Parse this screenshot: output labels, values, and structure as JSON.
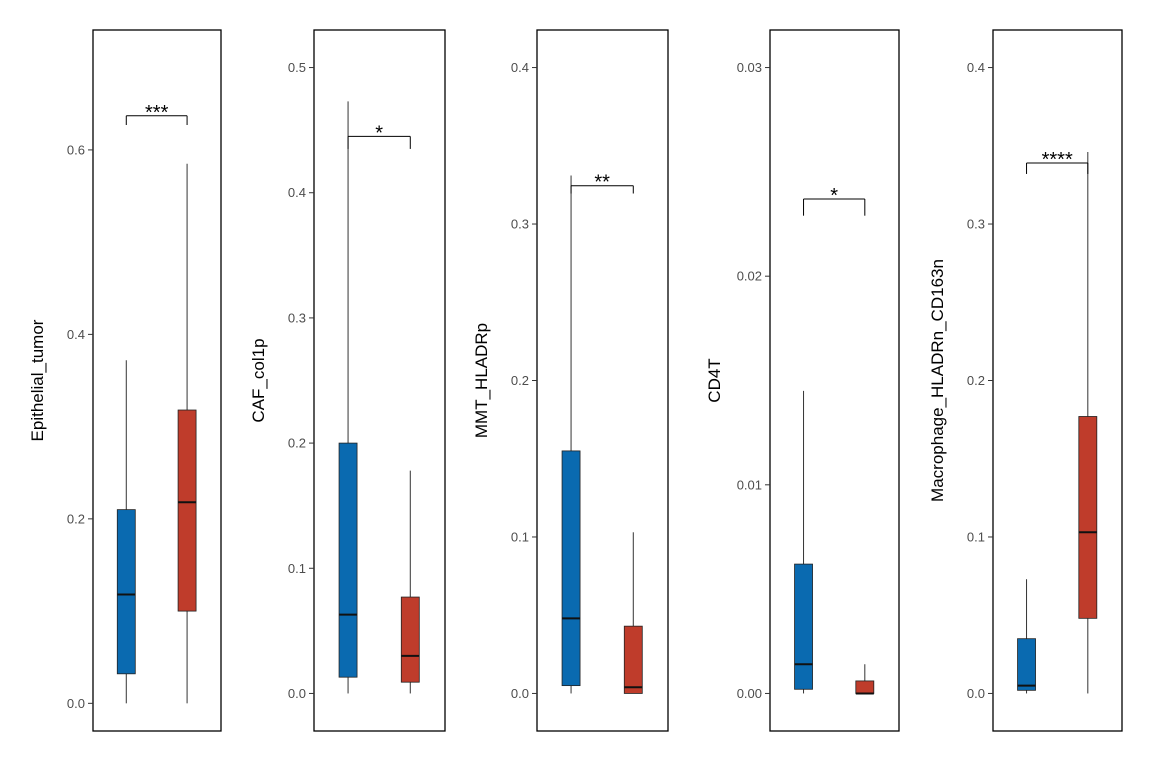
{
  "chart_data": [
    {
      "type": "box",
      "ylabel": "Epithelial_tumor",
      "ylim": [
        -0.03,
        0.73
      ],
      "yticks": [
        0.0,
        0.2,
        0.4,
        0.6
      ],
      "ytick_labels": [
        "0.0",
        "0.2",
        "0.4",
        "0.6"
      ],
      "groups": [
        {
          "color": "#0a6ab0",
          "min": 0.0,
          "q1": 0.032,
          "median": 0.118,
          "q3": 0.21,
          "max": 0.372
        },
        {
          "color": "#bf3c2b",
          "min": 0.0,
          "q1": 0.1,
          "median": 0.218,
          "q3": 0.318,
          "max": 0.585
        }
      ],
      "significance": {
        "label": "***",
        "y": 0.637,
        "tick_left_end": 0.627,
        "tick_right_end": 0.627
      }
    },
    {
      "type": "box",
      "ylabel": "CAF_col1p",
      "ylim": [
        -0.03,
        0.53
      ],
      "yticks": [
        0.0,
        0.1,
        0.2,
        0.3,
        0.4,
        0.5
      ],
      "ytick_labels": [
        "0.0",
        "0.1",
        "0.2",
        "0.3",
        "0.4",
        "0.5"
      ],
      "groups": [
        {
          "color": "#0a6ab0",
          "min": 0.0,
          "q1": 0.013,
          "median": 0.063,
          "q3": 0.2,
          "max": 0.473
        },
        {
          "color": "#bf3c2b",
          "min": 0.0,
          "q1": 0.009,
          "median": 0.03,
          "q3": 0.077,
          "max": 0.178
        }
      ],
      "significance": {
        "label": "*",
        "y": 0.445,
        "tick_left_end": 0.435,
        "tick_right_end": 0.435
      }
    },
    {
      "type": "box",
      "ylabel": "MMT_HLADRp",
      "ylim": [
        -0.024,
        0.424
      ],
      "yticks": [
        0.0,
        0.1,
        0.2,
        0.3,
        0.4
      ],
      "ytick_labels": [
        "0.0",
        "0.1",
        "0.2",
        "0.3",
        "0.4"
      ],
      "groups": [
        {
          "color": "#0a6ab0",
          "min": 0.0,
          "q1": 0.005,
          "median": 0.048,
          "q3": 0.155,
          "max": 0.331
        },
        {
          "color": "#bf3c2b",
          "min": 0.0,
          "q1": 0.0,
          "median": 0.004,
          "q3": 0.043,
          "max": 0.103
        }
      ],
      "significance": {
        "label": "**",
        "y": 0.3245,
        "tick_left_end": 0.3195,
        "tick_right_end": 0.3195
      }
    },
    {
      "type": "box",
      "ylabel": "CD4T",
      "ylim": [
        -0.0018,
        0.0318
      ],
      "yticks": [
        0.0,
        0.01,
        0.02,
        0.03
      ],
      "ytick_labels": [
        "0.00",
        "0.01",
        "0.02",
        "0.03"
      ],
      "groups": [
        {
          "color": "#0a6ab0",
          "min": 0.0,
          "q1": 0.0002,
          "median": 0.0014,
          "q3": 0.0062,
          "max": 0.0145
        },
        {
          "color": "#bf3c2b",
          "min": 0.0,
          "q1": 0.0,
          "median": 0.0,
          "q3": 0.0006,
          "max": 0.0014
        }
      ],
      "significance": {
        "label": "*",
        "y": 0.0237,
        "tick_left_end": 0.0229,
        "tick_right_end": 0.0229
      }
    },
    {
      "type": "box",
      "ylabel": "Macrophage_HLADRn_CD163n",
      "ylim": [
        -0.024,
        0.424
      ],
      "yticks": [
        0.0,
        0.1,
        0.2,
        0.3,
        0.4
      ],
      "ytick_labels": [
        "0.0",
        "0.1",
        "0.2",
        "0.3",
        "0.4"
      ],
      "groups": [
        {
          "color": "#0a6ab0",
          "min": 0.0,
          "q1": 0.002,
          "median": 0.005,
          "q3": 0.035,
          "max": 0.073
        },
        {
          "color": "#bf3c2b",
          "min": 0.0,
          "q1": 0.048,
          "median": 0.103,
          "q3": 0.177,
          "max": 0.346
        }
      ],
      "significance": {
        "label": "****",
        "y": 0.339,
        "tick_left_end": 0.332,
        "tick_right_end": 0.332
      }
    }
  ]
}
